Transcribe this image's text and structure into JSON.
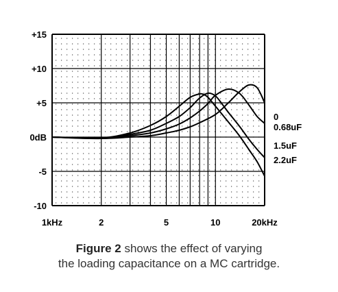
{
  "chart_data": {
    "type": "line",
    "x_scale": "log",
    "x_unit": "Hz",
    "xlim": [
      1000,
      20000
    ],
    "ylim": [
      -10,
      15
    ],
    "x_ticks": [
      {
        "value": 1000,
        "label": "1kHz"
      },
      {
        "value": 2000,
        "label": "2"
      },
      {
        "value": 5000,
        "label": "5"
      },
      {
        "value": 10000,
        "label": "10"
      },
      {
        "value": 20000,
        "label": "20kHz"
      }
    ],
    "y_ticks": [
      {
        "value": 15,
        "label": "+15"
      },
      {
        "value": 10,
        "label": "+10"
      },
      {
        "value": 5,
        "label": "+5"
      },
      {
        "value": 0,
        "label": "0dB"
      },
      {
        "value": -5,
        "label": "-5"
      },
      {
        "value": -10,
        "label": "-10"
      }
    ],
    "grid": true,
    "series": [
      {
        "name": "0",
        "x": [
          1000,
          2000,
          3000,
          4000,
          5000,
          6000,
          7000,
          8000,
          10000,
          12000,
          14000,
          16000,
          18000,
          20000
        ],
        "y": [
          0,
          -0.2,
          0,
          0.2,
          0.6,
          1.0,
          1.5,
          2.1,
          3.3,
          5.0,
          6.6,
          7.6,
          7.2,
          5.0
        ]
      },
      {
        "name": "0.68uF",
        "x": [
          1000,
          2000,
          3000,
          4000,
          5000,
          6000,
          7000,
          8000,
          9000,
          10000,
          12000,
          14000,
          16000,
          18000,
          20000
        ],
        "y": [
          0,
          -0.2,
          0.2,
          0.6,
          1.2,
          1.9,
          2.8,
          3.8,
          4.9,
          6.1,
          7.0,
          6.4,
          4.7,
          3.0,
          2.0
        ]
      },
      {
        "name": "1.5uF",
        "x": [
          1000,
          2000,
          3000,
          4000,
          5000,
          6000,
          7000,
          8000,
          9000,
          10000,
          11000,
          12000,
          14000,
          16000,
          18000,
          20000
        ],
        "y": [
          0,
          -0.2,
          0.4,
          1.0,
          2.0,
          3.0,
          4.3,
          5.7,
          6.4,
          6.0,
          4.8,
          3.6,
          1.6,
          -0.3,
          -1.8,
          -3.0
        ]
      },
      {
        "name": "2.2uF",
        "x": [
          1000,
          2000,
          3000,
          4000,
          5000,
          6000,
          7000,
          8000,
          8500,
          9000,
          10000,
          12000,
          14000,
          16000,
          18000,
          20000
        ],
        "y": [
          0,
          -0.1,
          0.6,
          1.7,
          3.0,
          4.5,
          5.8,
          6.3,
          6.2,
          5.8,
          4.5,
          2.2,
          0.2,
          -1.8,
          -3.6,
          -5.7
        ]
      }
    ],
    "series_label_values": [
      {
        "text": "0",
        "y": 3.0
      },
      {
        "text": "0.68uF",
        "y": 1.5
      },
      {
        "text": "1.5uF",
        "y": -1.2
      },
      {
        "text": "2.2uF",
        "y": -3.3
      }
    ]
  },
  "caption": {
    "bold": "Figure 2",
    "rest_line1": " shows the effect of varying",
    "line2": "the loading capacitance on a MC cartridge."
  }
}
